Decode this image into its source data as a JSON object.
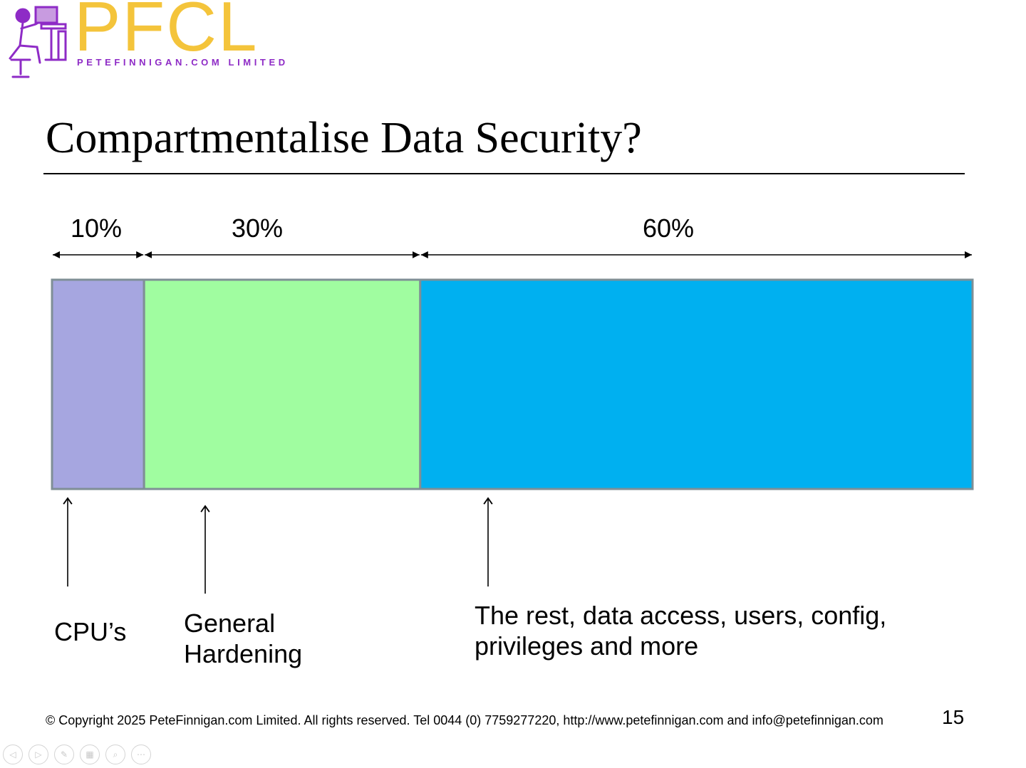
{
  "logo": {
    "wordmark": "PFCL",
    "tagline": "PETEFINNIGAN.COM LIMITED",
    "wordmark_color": "#f4c43b",
    "accent_color": "#8e2bc6",
    "figure_icon": "person-at-computer-icon"
  },
  "slide": {
    "title": "Compartmentalise Data Security?",
    "number": "15"
  },
  "diagram": {
    "segments": [
      {
        "id": "cpu",
        "percent_label": "10%",
        "share": 10,
        "color": "#a6a6e0",
        "caption_lines": [
          "CPU’s"
        ]
      },
      {
        "id": "hardening",
        "percent_label": "30%",
        "share": 30,
        "color": "#a0fda0",
        "caption_lines": [
          "General",
          "Hardening"
        ]
      },
      {
        "id": "rest",
        "percent_label": "60%",
        "share": 60,
        "color": "#00b0f0",
        "caption_lines": [
          "The rest, data access, users, config,",
          "privileges and more"
        ]
      }
    ],
    "border_color": "#7f8f96"
  },
  "footer": {
    "copyright": "© Copyright 2025 PeteFinnigan.com Limited. All rights reserved. Tel 0044 (0) 7759277220, http://www.petefinnigan.com and info@petefinnigan.com"
  },
  "controls": [
    {
      "name": "previous-slide-button",
      "icon": "arrow-left-icon",
      "glyph": "◁"
    },
    {
      "name": "next-slide-button",
      "icon": "arrow-right-icon",
      "glyph": "▷"
    },
    {
      "name": "pen-tool-button",
      "icon": "pen-icon",
      "glyph": "✎"
    },
    {
      "name": "see-all-slides-button",
      "icon": "slides-grid-icon",
      "glyph": "▦"
    },
    {
      "name": "zoom-button",
      "icon": "magnifier-icon",
      "glyph": "⌕"
    },
    {
      "name": "more-options-button",
      "icon": "more-dots-icon",
      "glyph": "⋯"
    }
  ]
}
